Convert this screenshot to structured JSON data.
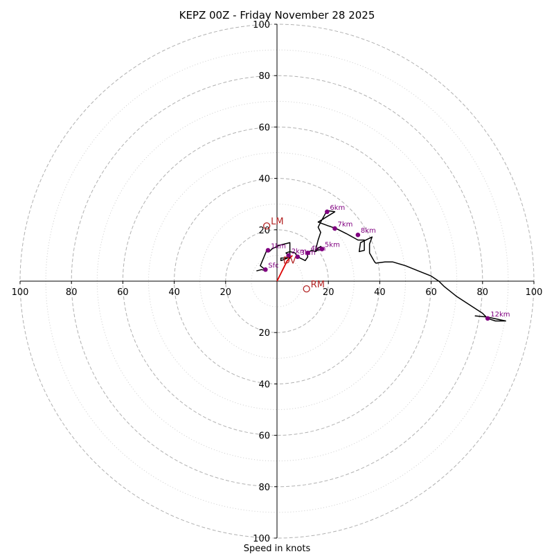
{
  "chart_data": {
    "type": "hodograph",
    "title": "KEPZ 00Z - Friday November 28 2025",
    "xlabel": "Speed in knots",
    "range": [
      -100,
      100
    ],
    "major_rings": [
      20,
      40,
      60,
      80,
      100
    ],
    "minor_rings": [
      10,
      30,
      50,
      70,
      90
    ],
    "axis_ticks": [
      {
        "value": -100,
        "label": "100"
      },
      {
        "value": -80,
        "label": "80"
      },
      {
        "value": -60,
        "label": "60"
      },
      {
        "value": -40,
        "label": "40"
      },
      {
        "value": -20,
        "label": "20"
      },
      {
        "value": 20,
        "label": "20"
      },
      {
        "value": 40,
        "label": "40"
      },
      {
        "value": 60,
        "label": "60"
      },
      {
        "value": 80,
        "label": "80"
      },
      {
        "value": 100,
        "label": "100"
      }
    ],
    "colors": {
      "hodograph": "#000000",
      "points": "#800080",
      "motion": "#b22222",
      "shear": "#dd0000",
      "ring": "#b0b0b0"
    },
    "hodograph_line": [
      [
        -8,
        4
      ],
      [
        -6,
        4.5
      ],
      [
        -4,
        4
      ],
      [
        -6.5,
        6
      ],
      [
        -4,
        12
      ],
      [
        -3,
        11.5
      ],
      [
        -2,
        12.5
      ],
      [
        1,
        14
      ],
      [
        5,
        15
      ],
      [
        5,
        9
      ],
      [
        1.5,
        9
      ],
      [
        1.5,
        8
      ],
      [
        3,
        8.5
      ],
      [
        5,
        9.5
      ],
      [
        3.5,
        11
      ],
      [
        5,
        11.5
      ],
      [
        7,
        11
      ],
      [
        8,
        9.5
      ],
      [
        11,
        8
      ],
      [
        12,
        9.5
      ],
      [
        11.5,
        11
      ],
      [
        13.5,
        12
      ],
      [
        15,
        11.5
      ],
      [
        16,
        12.2
      ],
      [
        17.5,
        12.2
      ],
      [
        18,
        12.5
      ],
      [
        17,
        13.5
      ],
      [
        15,
        12
      ],
      [
        16,
        16
      ],
      [
        17,
        19
      ],
      [
        16,
        21
      ],
      [
        17,
        23
      ],
      [
        19.5,
        27.5
      ],
      [
        22.5,
        27
      ],
      [
        16,
        23
      ],
      [
        20,
        21.5
      ],
      [
        23,
        20.5
      ],
      [
        27,
        18.5
      ],
      [
        31.5,
        16
      ],
      [
        34,
        16
      ],
      [
        34,
        12
      ],
      [
        32,
        11.5
      ],
      [
        32.5,
        15
      ],
      [
        37,
        17.2
      ],
      [
        36,
        14.5
      ],
      [
        36,
        11
      ],
      [
        38,
        7.5
      ],
      [
        38.5,
        7
      ],
      [
        42,
        7.5
      ],
      [
        45,
        7.5
      ],
      [
        50,
        6
      ],
      [
        55,
        4
      ],
      [
        60,
        2
      ],
      [
        63,
        0
      ],
      [
        65,
        -2
      ],
      [
        70,
        -6
      ],
      [
        80,
        -12.5
      ],
      [
        82,
        -14.5
      ],
      [
        85,
        -15.5
      ],
      [
        89,
        -15.5
      ],
      [
        82,
        -14
      ],
      [
        77,
        -13.5
      ]
    ],
    "points": [
      {
        "label": "Sfc",
        "u": -4.5,
        "v": 4.5
      },
      {
        "label": "1km",
        "u": -3.5,
        "v": 12
      },
      {
        "label": "2km",
        "u": 4.5,
        "v": 10
      },
      {
        "label": "3km",
        "u": 8,
        "v": 9.5
      },
      {
        "label": "4km",
        "u": 12,
        "v": 11
      },
      {
        "label": "5km",
        "u": 17.5,
        "v": 12.5
      },
      {
        "label": "6km",
        "u": 19.5,
        "v": 27
      },
      {
        "label": "7km",
        "u": 22.5,
        "v": 20.5
      },
      {
        "label": "8km",
        "u": 31.5,
        "v": 18
      },
      {
        "label": "12km",
        "u": 82,
        "v": -14.5
      }
    ],
    "storm_motion": [
      {
        "label": "LM",
        "u": -4,
        "v": 21.5
      },
      {
        "label": "RM",
        "u": 11.5,
        "v": -3
      }
    ],
    "mean_wind_label": "DV",
    "mean_wind": {
      "u": 4,
      "v": 8
    },
    "shear_vector": [
      [
        0,
        0
      ],
      [
        4,
        8
      ],
      [
        6,
        10
      ]
    ]
  }
}
